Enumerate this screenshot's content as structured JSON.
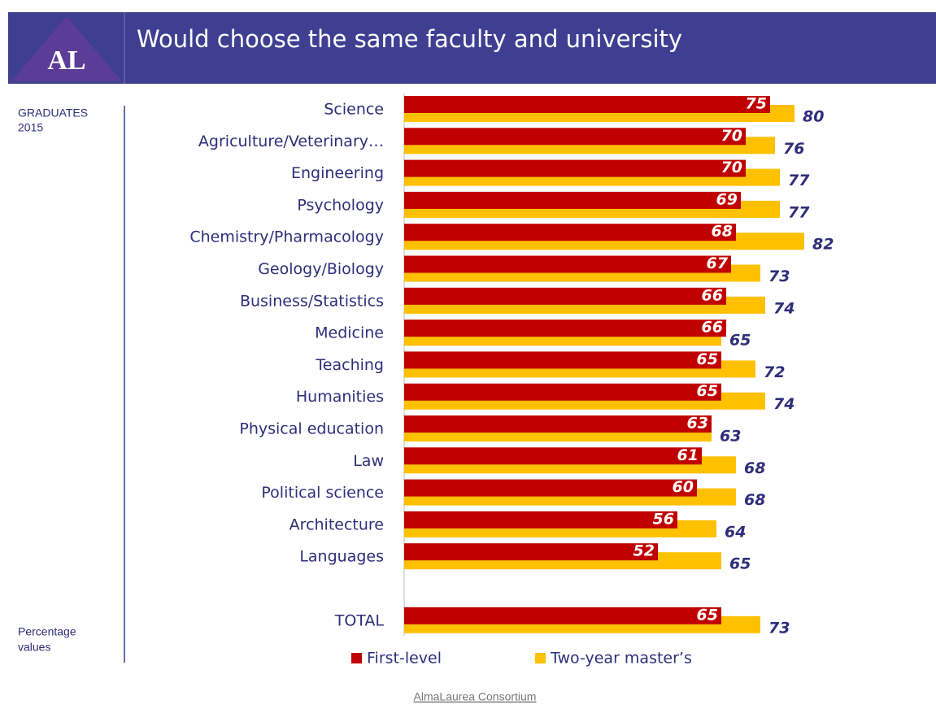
{
  "logo": "AL",
  "source": "AlmaLaurea Consortium",
  "side_notes": [
    [
      "GRADUATES",
      "2015"
    ],
    [
      "Percentage",
      "values"
    ]
  ],
  "chart_data": {
    "type": "hbar",
    "title": "Would choose the same faculty and university",
    "categories": [
      "Science",
      "Agriculture/Veterinary…",
      "Engineering",
      "Psychology",
      "Chemistry/Pharmacology",
      "Geology/Biology",
      "Business/Statistics",
      "Medicine",
      "Teaching",
      "Humanities",
      "Physical education",
      "Law",
      "Political science",
      "Architecture",
      "Languages",
      null,
      "TOTAL"
    ],
    "series": [
      {
        "name": "First-level",
        "color": "#c00000",
        "values": [
          75,
          70,
          70,
          69,
          68,
          67,
          66,
          66,
          65,
          65,
          63,
          61,
          60,
          56,
          52,
          null,
          65
        ]
      },
      {
        "name": "Two-year master’s",
        "color": "#ffc000",
        "values": [
          80,
          76,
          77,
          77,
          82,
          73,
          74,
          65,
          72,
          74,
          63,
          68,
          68,
          64,
          65,
          null,
          73
        ]
      }
    ],
    "xlim": [
      0,
      100
    ]
  }
}
